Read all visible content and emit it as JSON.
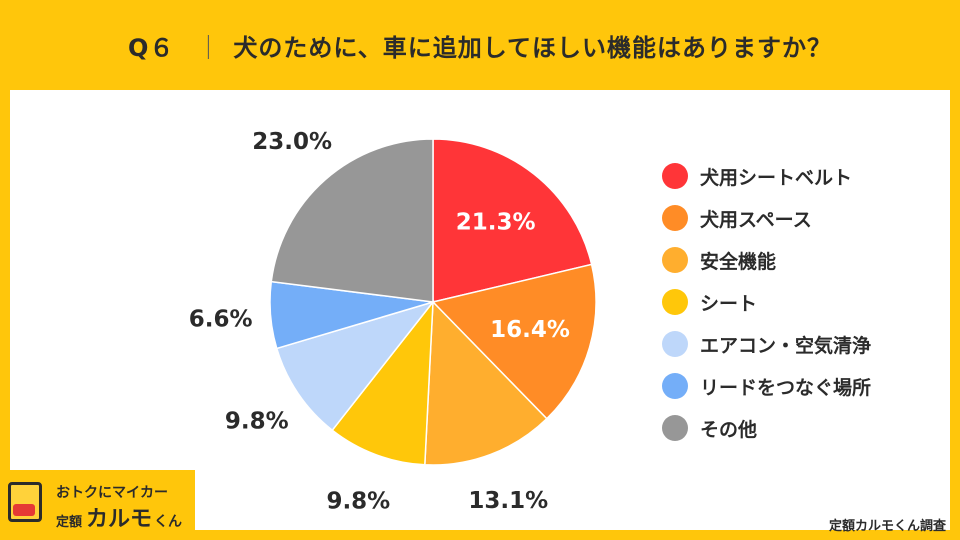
{
  "header": {
    "q": "Q６",
    "separator": "｜",
    "question": "犬のために、車に追加してほしい機能はありますか？"
  },
  "logo": {
    "tagline": "おトクにマイカー",
    "prefix": "定額",
    "name": "カルモ",
    "suffix": "くん"
  },
  "source": "定額カルモくん調査",
  "chart_data": {
    "type": "pie",
    "title": "",
    "slices": [
      {
        "label": "犬用シートベルト",
        "value": 21.3,
        "display": "21.3%",
        "color": "#FF3538",
        "label_inside": true
      },
      {
        "label": "犬用スペース",
        "value": 16.4,
        "display": "16.4%",
        "color": "#FF8C26",
        "label_inside": true
      },
      {
        "label": "安全機能",
        "value": 13.1,
        "display": "13.1%",
        "color": "#FFAE2E",
        "label_inside": false
      },
      {
        "label": "シート",
        "value": 9.8,
        "display": "9.8%",
        "color": "#FFC70A",
        "label_inside": false
      },
      {
        "label": "エアコン・空気清浄",
        "value": 9.8,
        "display": "9.8%",
        "color": "#BED7FA",
        "label_inside": false
      },
      {
        "label": "リードをつなぐ場所",
        "value": 6.6,
        "display": "6.6%",
        "color": "#74AEF8",
        "label_inside": false
      },
      {
        "label": "その他",
        "value": 23.0,
        "display": "23.0%",
        "color": "#979797",
        "label_inside": false
      }
    ],
    "legend_position": "right",
    "start_angle": "12 o'clock",
    "direction": "clockwise"
  }
}
